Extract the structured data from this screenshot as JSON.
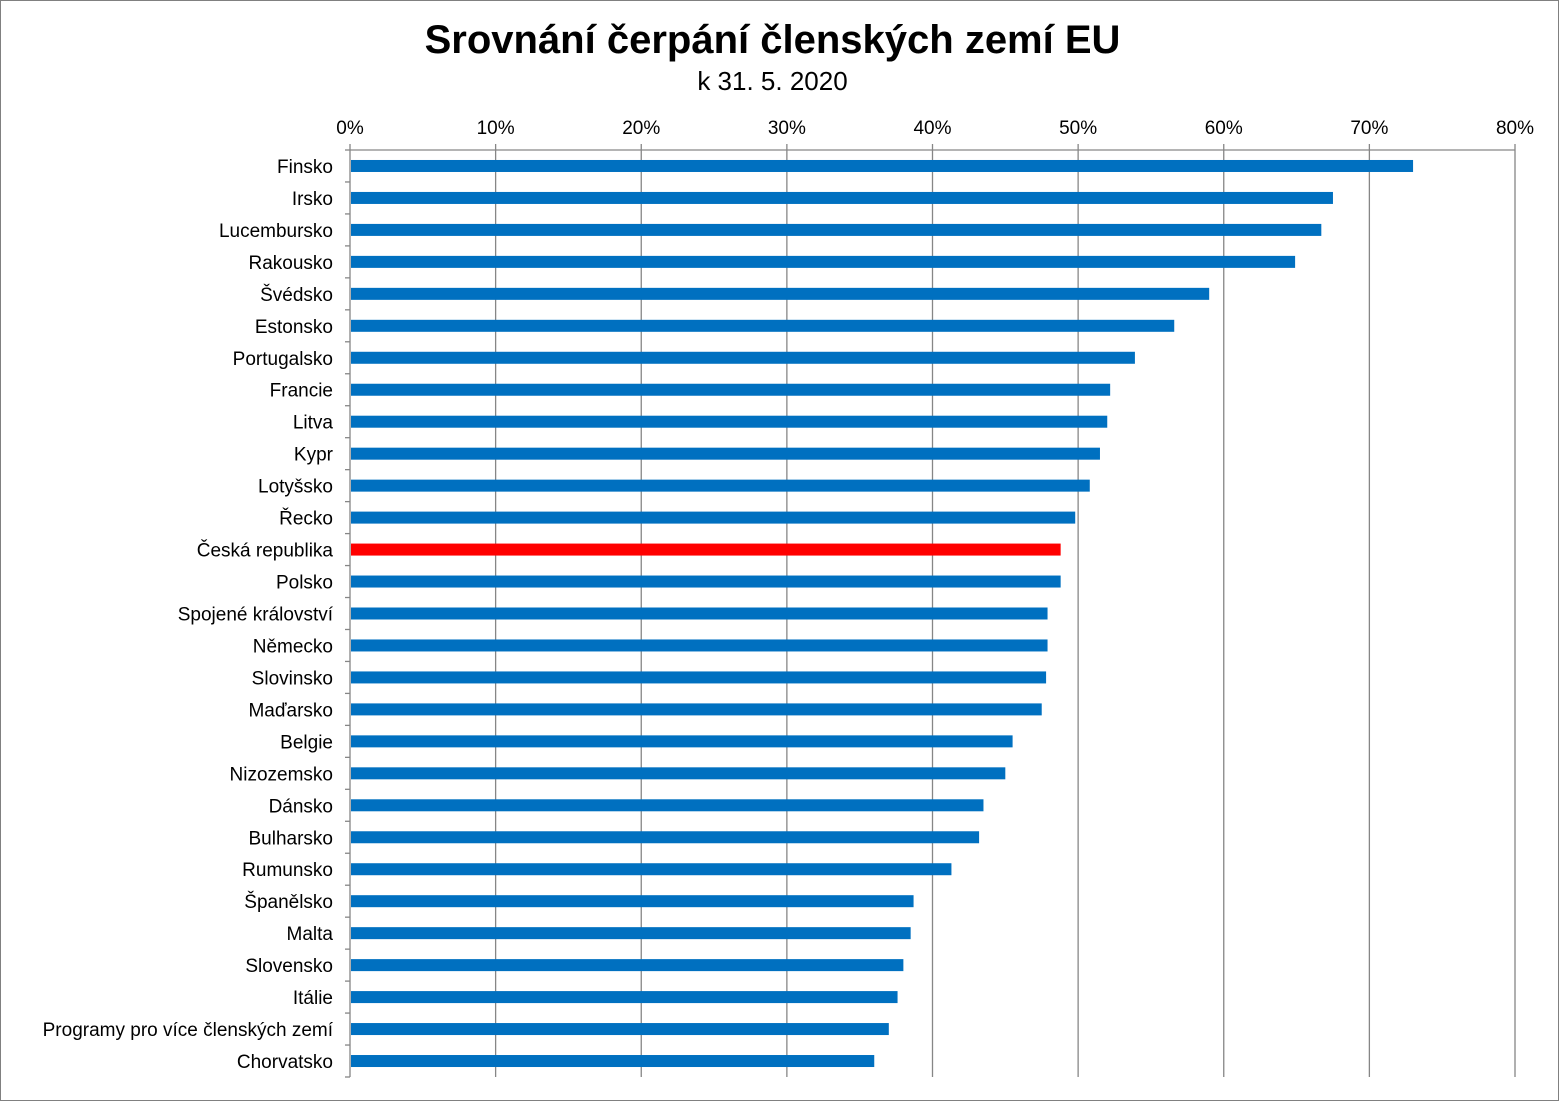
{
  "chart_data": {
    "type": "bar",
    "orientation": "horizontal",
    "title": "Srovnání čerpání členských zemí EU",
    "subtitle": "k 31. 5. 2020",
    "xlabel": "",
    "ylabel": "",
    "xlim": [
      0,
      80
    ],
    "x_ticks": [
      "0%",
      "10%",
      "20%",
      "30%",
      "40%",
      "50%",
      "60%",
      "70%",
      "80%"
    ],
    "x_axis_position": "top",
    "grid": true,
    "legend": "none",
    "bar_color": "#0070C0",
    "highlight_color": "#FF0000",
    "highlight_category": "Česká republika",
    "categories": [
      "Finsko",
      "Irsko",
      "Lucembursko",
      "Rakousko",
      "Švédsko",
      "Estonsko",
      "Portugalsko",
      "Francie",
      "Litva",
      "Kypr",
      "Lotyšsko",
      "Řecko",
      "Česká republika",
      "Polsko",
      "Spojené království",
      "Německo",
      "Slovinsko",
      "Maďarsko",
      "Belgie",
      "Nizozemsko",
      "Dánsko",
      "Bulharsko",
      "Rumunsko",
      "Španělsko",
      "Malta",
      "Slovensko",
      "Itálie",
      "Programy pro více členských zemí",
      "Chorvatsko"
    ],
    "values": [
      73.0,
      67.5,
      66.7,
      64.9,
      59.0,
      56.6,
      53.9,
      52.2,
      52.0,
      51.5,
      50.8,
      49.8,
      48.8,
      48.8,
      47.9,
      47.9,
      47.8,
      47.5,
      45.5,
      45.0,
      43.5,
      43.2,
      41.3,
      38.7,
      38.5,
      38.0,
      37.6,
      37.0,
      36.0
    ]
  }
}
